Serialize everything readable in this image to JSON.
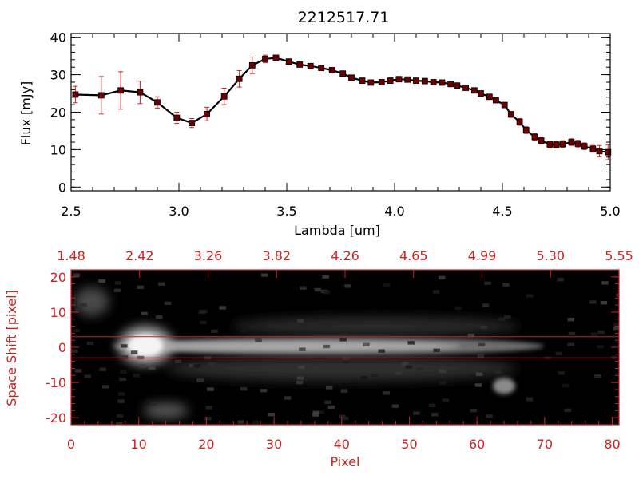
{
  "chart_data": [
    {
      "type": "line",
      "title": "2212517.71",
      "xlabel": "Lambda [um]",
      "ylabel": "Flux [mJy]",
      "xlim": [
        2.5,
        5.0
      ],
      "ylim": [
        -1,
        41
      ],
      "xticks": [
        "2.5",
        "3.0",
        "3.5",
        "4.0",
        "4.5",
        "5.0"
      ],
      "yticks": [
        "0",
        "10",
        "20",
        "30",
        "40"
      ],
      "grid": false,
      "series": [
        {
          "x": [
            2.52,
            2.64,
            2.73,
            2.82,
            2.9,
            2.99,
            3.06,
            3.13,
            3.21,
            3.28,
            3.34,
            3.4,
            3.45,
            3.51,
            3.56,
            3.61,
            3.66,
            3.71,
            3.76,
            3.8,
            3.85,
            3.89,
            3.94,
            3.98,
            4.02,
            4.06,
            4.1,
            4.14,
            4.18,
            4.22,
            4.26,
            4.29,
            4.33,
            4.37,
            4.4,
            4.44,
            4.47,
            4.51,
            4.54,
            4.58,
            4.61,
            4.65,
            4.68,
            4.72,
            4.75,
            4.78,
            4.82,
            4.85,
            4.88,
            4.92,
            4.95,
            4.99
          ],
          "y": [
            24.7,
            24.5,
            25.8,
            25.3,
            22.6,
            18.5,
            17.1,
            19.5,
            24.2,
            28.9,
            32.5,
            34.2,
            34.5,
            33.5,
            32.7,
            32.3,
            31.8,
            31.2,
            30.3,
            29.2,
            28.4,
            27.9,
            28.0,
            28.4,
            28.8,
            28.7,
            28.4,
            28.3,
            28.0,
            27.9,
            27.5,
            27.1,
            26.5,
            25.8,
            25.0,
            24.1,
            23.2,
            21.9,
            19.4,
            17.4,
            15.2,
            13.4,
            12.4,
            11.4,
            11.3,
            11.5,
            12.0,
            11.6,
            10.9,
            10.2,
            9.6,
            9.3
          ],
          "err": [
            2.2,
            5.0,
            5.0,
            3.0,
            1.5,
            1.5,
            1.2,
            1.8,
            2.2,
            2.2,
            2.2,
            1.0,
            0.7,
            0.6,
            0.6,
            0.6,
            0.6,
            0.6,
            0.6,
            0.6,
            0.6,
            0.6,
            0.6,
            0.6,
            0.6,
            0.6,
            0.6,
            0.6,
            0.6,
            0.6,
            0.6,
            0.6,
            0.6,
            0.6,
            0.6,
            0.6,
            0.7,
            0.7,
            0.8,
            0.9,
            0.9,
            0.9,
            0.9,
            0.9,
            0.9,
            0.9,
            0.9,
            0.9,
            0.9,
            0.9,
            1.5,
            2.0
          ]
        }
      ]
    },
    {
      "type": "heatmap",
      "xlabel": "Pixel",
      "ylabel": "Space Shift [pixel]",
      "xlim": [
        0,
        81
      ],
      "ylim": [
        -22,
        22
      ],
      "xticks": [
        "0",
        "10",
        "20",
        "30",
        "40",
        "50",
        "60",
        "70",
        "80"
      ],
      "yticks": [
        "-20",
        "-10",
        "0",
        "10",
        "20"
      ],
      "top_ticks": [
        "1.48",
        "2.42",
        "3.26",
        "3.82",
        "4.26",
        "4.65",
        "4.99",
        "5.30",
        "5.55"
      ],
      "colormap": "grayscale",
      "background": "#000000",
      "guide_lines_y": [
        3,
        -3
      ],
      "features": [
        {
          "pixel": 11,
          "shift": 0.5,
          "brightness": 1.0
        },
        {
          "pixel": 40,
          "shift": 0.3,
          "brightness": 0.55
        },
        {
          "pixel": 64,
          "shift": -11,
          "brightness": 0.45
        },
        {
          "pixel": 8,
          "shift": -18,
          "brightness": 0.35
        },
        {
          "pixel": 3,
          "shift": 13,
          "brightness": 0.3
        }
      ]
    }
  ],
  "colors": {
    "accent_red": "#cc2222",
    "marker_fill": "#6b0000",
    "line": "#000000",
    "image_background": "#000000"
  }
}
